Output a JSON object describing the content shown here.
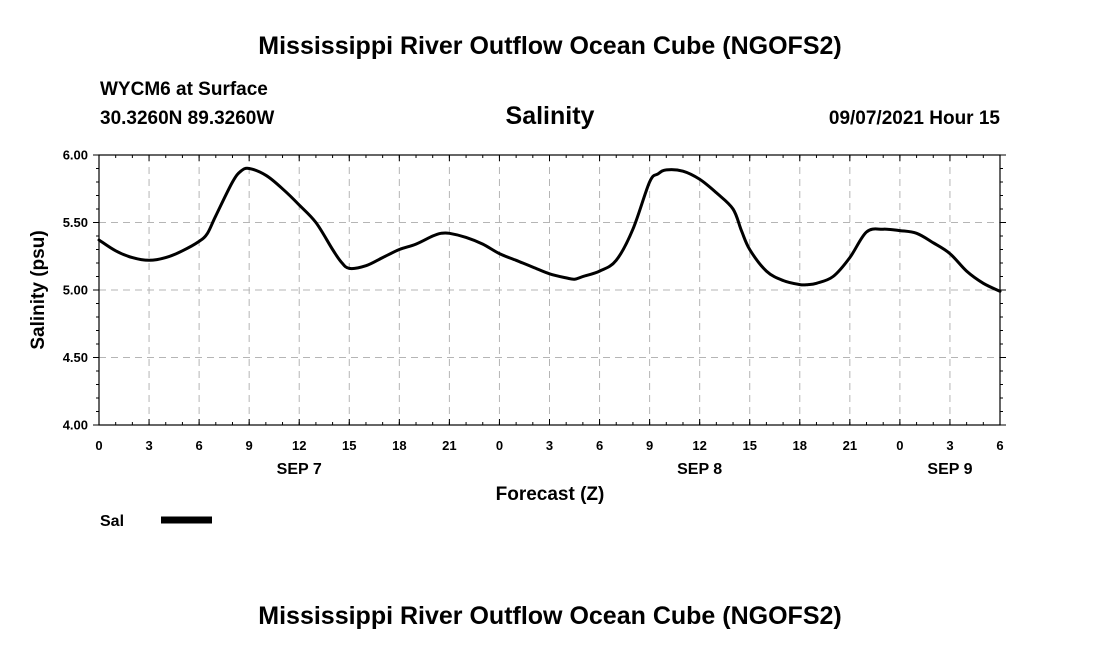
{
  "header": {
    "title": "Mississippi River Outflow Ocean Cube (NGOFS2)",
    "station": "WYCM6 at Surface",
    "coords": "30.3260N  89.3260W",
    "variable": "Salinity",
    "datetime": "09/07/2021 Hour 15"
  },
  "footer": {
    "title": "Mississippi River Outflow Ocean Cube (NGOFS2)"
  },
  "chart_data": {
    "type": "line",
    "xlabel": "Forecast (Z)",
    "ylabel": "Salinity (psu)",
    "ylim": [
      4.0,
      6.0
    ],
    "xlim": [
      0,
      54
    ],
    "y_ticks": [
      "4.00",
      "4.50",
      "5.00",
      "5.50",
      "6.00"
    ],
    "x_ticks": [
      0,
      3,
      6,
      9,
      12,
      15,
      18,
      21,
      24,
      27,
      30,
      33,
      36,
      39,
      42,
      45,
      48,
      51,
      54
    ],
    "x_tick_labels": [
      "0",
      "3",
      "6",
      "9",
      "12",
      "15",
      "18",
      "21",
      "0",
      "3",
      "6",
      "9",
      "12",
      "15",
      "18",
      "21",
      "0",
      "3",
      "6"
    ],
    "date_labels": [
      {
        "x": 12,
        "label": "SEP 7"
      },
      {
        "x": 36,
        "label": "SEP 8"
      },
      {
        "x": 51,
        "label": "SEP 9"
      }
    ],
    "grid": true,
    "legend": "bottom-left",
    "series": [
      {
        "name": "Sal",
        "color": "#000000",
        "x": [
          0,
          1,
          2,
          3,
          4,
          5,
          6,
          6.5,
          7,
          8,
          8.5,
          9,
          10,
          11,
          12,
          13,
          14,
          14.5,
          15,
          16,
          17,
          18,
          19,
          20,
          20.5,
          21,
          22,
          23,
          24,
          25,
          26,
          27,
          28,
          28.5,
          29,
          30,
          31,
          32,
          33,
          33.5,
          34,
          35,
          36,
          37,
          38,
          38.5,
          39,
          40,
          41,
          42,
          42.5,
          43,
          44,
          45,
          46,
          47,
          48,
          49,
          50,
          51,
          52,
          53,
          54
        ],
        "values": [
          5.37,
          5.29,
          5.24,
          5.22,
          5.24,
          5.29,
          5.36,
          5.42,
          5.55,
          5.8,
          5.88,
          5.9,
          5.85,
          5.75,
          5.63,
          5.5,
          5.3,
          5.21,
          5.16,
          5.18,
          5.24,
          5.3,
          5.34,
          5.4,
          5.42,
          5.42,
          5.39,
          5.34,
          5.27,
          5.22,
          5.17,
          5.12,
          5.09,
          5.08,
          5.1,
          5.14,
          5.22,
          5.45,
          5.8,
          5.86,
          5.89,
          5.88,
          5.82,
          5.72,
          5.6,
          5.44,
          5.3,
          5.14,
          5.07,
          5.04,
          5.04,
          5.05,
          5.1,
          5.24,
          5.43,
          5.45,
          5.44,
          5.42,
          5.35,
          5.27,
          5.14,
          5.05,
          4.99
        ]
      }
    ]
  }
}
